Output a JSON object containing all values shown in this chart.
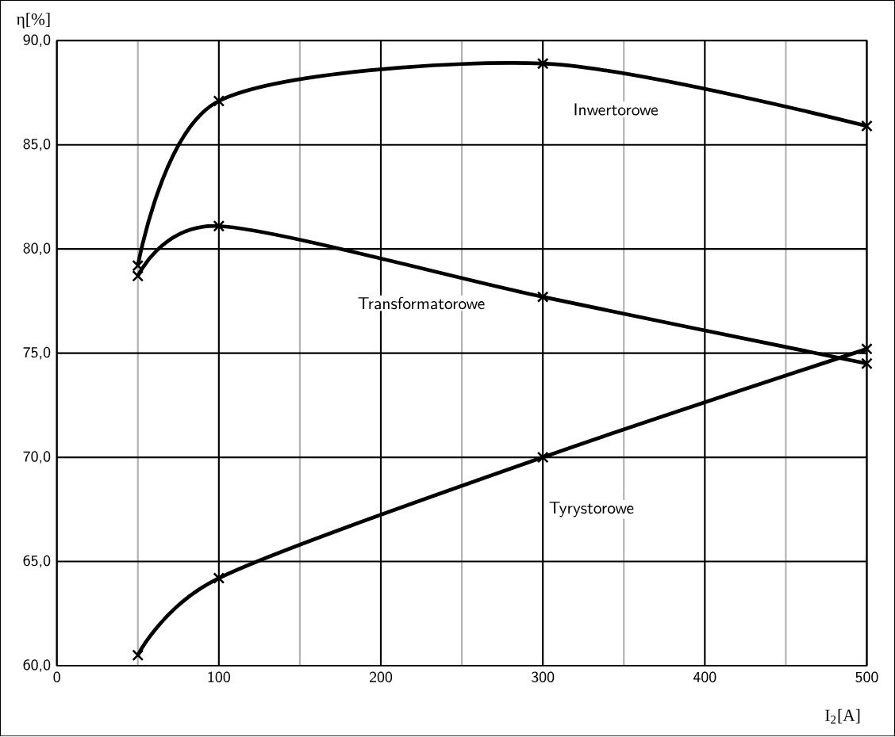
{
  "chart_data": {
    "type": "line",
    "xlabel": "I$_{2}$[A]",
    "ylabel": "η[%]",
    "xlim": [
      0,
      500
    ],
    "xticks": [
      0,
      100,
      200,
      300,
      400,
      500
    ],
    "ylim": [
      60,
      90
    ],
    "yticks": [
      {
        "value": 60,
        "label": "60,0"
      },
      {
        "value": 65,
        "label": "65,0"
      },
      {
        "value": 70,
        "label": "70,0"
      },
      {
        "value": 75,
        "label": "75,0"
      },
      {
        "value": 80,
        "label": "80,0"
      },
      {
        "value": 85,
        "label": "85,0"
      },
      {
        "value": 90,
        "label": "90,0"
      }
    ],
    "grid": true,
    "marker": "cross",
    "line_style": "solid",
    "x": [
      50,
      100,
      300,
      500
    ],
    "series": [
      {
        "name": "Inwertorowe",
        "color": "#000000",
        "values": [
          79.2,
          87.1,
          88.9,
          85.9
        ]
      },
      {
        "name": "Transformatorowe",
        "color": "#000000",
        "values": [
          78.7,
          81.1,
          77.7,
          74.5
        ]
      },
      {
        "name": "Tyrystorowe",
        "color": "#000000",
        "values": [
          60.5,
          64.2,
          70.0,
          75.2
        ]
      }
    ]
  }
}
